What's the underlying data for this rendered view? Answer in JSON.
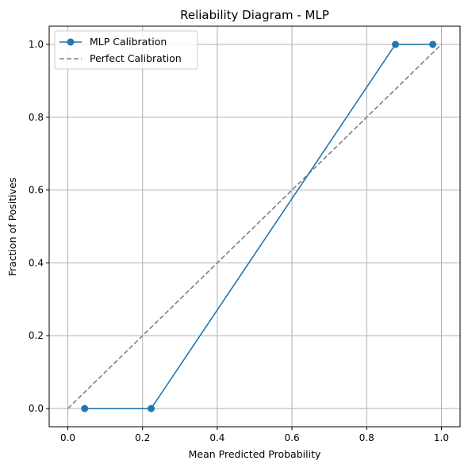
{
  "chart_data": {
    "type": "line",
    "title": "Reliability Diagram - MLP",
    "xlabel": "Mean Predicted Probability",
    "ylabel": "Fraction of Positives",
    "xlim": [
      -0.05,
      1.05
    ],
    "ylim": [
      -0.05,
      1.05
    ],
    "xticks": [
      0.0,
      0.2,
      0.4,
      0.6,
      0.8,
      1.0
    ],
    "yticks": [
      0.0,
      0.2,
      0.4,
      0.6,
      0.8,
      1.0
    ],
    "xtick_labels": [
      "0.0",
      "0.2",
      "0.4",
      "0.6",
      "0.8",
      "1.0"
    ],
    "ytick_labels": [
      "0.0",
      "0.2",
      "0.4",
      "0.6",
      "0.8",
      "1.0"
    ],
    "grid": true,
    "legend_position": "top-left",
    "series": [
      {
        "name": "MLP Calibration",
        "style": "solid-with-markers",
        "color": "#1f77b4",
        "x": [
          0.045,
          0.223,
          0.877,
          0.977
        ],
        "y": [
          0.0,
          0.0,
          1.0,
          1.0
        ]
      },
      {
        "name": "Perfect Calibration",
        "style": "dashed",
        "color": "#808080",
        "x": [
          0.0,
          1.0
        ],
        "y": [
          0.0,
          1.0
        ]
      }
    ]
  }
}
